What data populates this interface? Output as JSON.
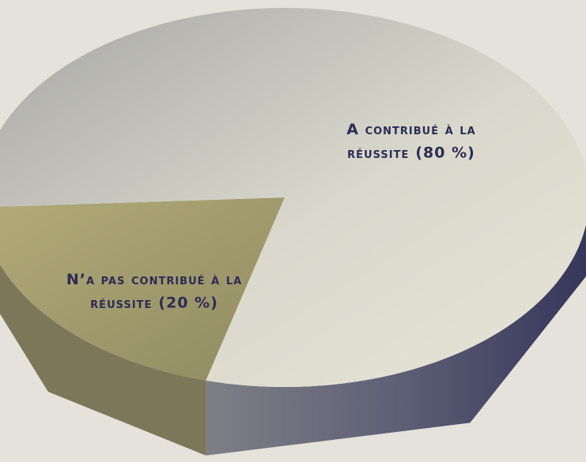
{
  "chart_data": {
    "type": "pie",
    "categories": [
      "N’a pas contribué à la réussite",
      "A contribué à la réussite"
    ],
    "values": [
      20,
      80
    ],
    "value_labels": [
      "(20 %)",
      "(80 %)"
    ],
    "colors": [
      "#a19a6c",
      "#c9c8bd"
    ]
  }
}
